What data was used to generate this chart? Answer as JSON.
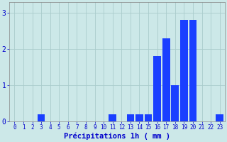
{
  "hours": [
    0,
    1,
    2,
    3,
    4,
    5,
    6,
    7,
    8,
    9,
    10,
    11,
    12,
    13,
    14,
    15,
    16,
    17,
    18,
    19,
    20,
    21,
    22,
    23
  ],
  "values": [
    0,
    0,
    0,
    0.2,
    0,
    0,
    0,
    0,
    0,
    0,
    0,
    0.2,
    0,
    0.2,
    0.2,
    0.2,
    1.8,
    2.3,
    1.0,
    2.8,
    2.8,
    0,
    0,
    0.2
  ],
  "bar_color": "#1a3fff",
  "background_color": "#cce8e8",
  "grid_color": "#aacccc",
  "axis_color": "#888888",
  "tick_color": "#0000cc",
  "xlabel": "Précipitations 1h ( mm )",
  "ylim": [
    0,
    3.3
  ],
  "yticks": [
    0,
    1,
    2,
    3
  ],
  "xlabel_fontsize": 7.5,
  "tick_fontsize": 5.5,
  "ytick_fontsize": 7
}
